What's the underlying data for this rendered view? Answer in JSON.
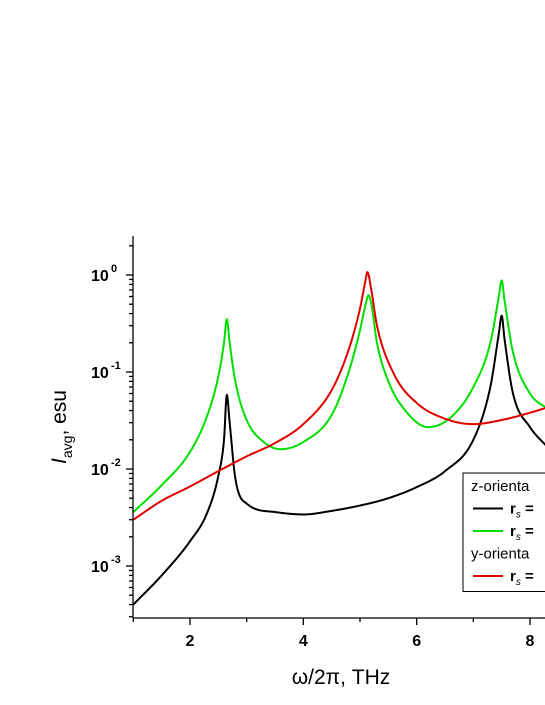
{
  "chart_data": {
    "type": "line",
    "xlabel": "ω/2π, THz",
    "ylabel": {
      "symbol": "I",
      "subscript": "avg",
      "unit": ", esu"
    },
    "xlim": [
      1,
      8.3
    ],
    "ylim": [
      0.0003,
      2.5
    ],
    "yscale": "log",
    "x_ticks": [
      2,
      4,
      6,
      8
    ],
    "y_ticks": [
      {
        "value": 0.001,
        "base": "10",
        "exp": "-3"
      },
      {
        "value": 0.01,
        "base": "10",
        "exp": "-2"
      },
      {
        "value": 0.1,
        "base": "10",
        "exp": "-1"
      },
      {
        "value": 1,
        "base": "10",
        "exp": "0"
      }
    ],
    "grid": false,
    "legend": {
      "placement": "bottom-right",
      "items": [
        {
          "kind": "header",
          "text": "z-orienta"
        },
        {
          "kind": "line",
          "series": 0,
          "label": "r",
          "sub": "s",
          "suffix": " ="
        },
        {
          "kind": "line",
          "series": 1,
          "label": "r",
          "sub": "s",
          "suffix": " ="
        },
        {
          "kind": "header",
          "text": "y-orienta"
        },
        {
          "kind": "line",
          "series": 2,
          "label": "r",
          "sub": "s",
          "suffix": " ="
        }
      ]
    },
    "series": [
      {
        "color": "#000000",
        "x": [
          1.0,
          1.5,
          2.0,
          2.3,
          2.5,
          2.6,
          2.65,
          2.7,
          2.8,
          3.0,
          3.5,
          4.0,
          4.5,
          5.0,
          5.5,
          6.0,
          6.5,
          7.0,
          7.3,
          7.45,
          7.5,
          7.55,
          7.7,
          8.0,
          8.3
        ],
        "y": [
          0.0004,
          0.0008,
          0.0018,
          0.0035,
          0.0085,
          0.02,
          0.058,
          0.03,
          0.008,
          0.0044,
          0.0036,
          0.0034,
          0.0037,
          0.0042,
          0.005,
          0.0065,
          0.0095,
          0.02,
          0.07,
          0.25,
          0.38,
          0.22,
          0.06,
          0.027,
          0.017
        ]
      },
      {
        "color": "#00e000",
        "x": [
          1.0,
          1.5,
          2.0,
          2.3,
          2.5,
          2.6,
          2.65,
          2.7,
          2.8,
          3.0,
          3.3,
          3.6,
          4.0,
          4.5,
          4.8,
          5.0,
          5.1,
          5.15,
          5.2,
          5.3,
          5.5,
          5.8,
          6.2,
          6.6,
          7.0,
          7.3,
          7.45,
          7.5,
          7.55,
          7.7,
          8.0,
          8.3
        ],
        "y": [
          0.0036,
          0.0068,
          0.015,
          0.035,
          0.09,
          0.2,
          0.35,
          0.2,
          0.08,
          0.032,
          0.019,
          0.016,
          0.019,
          0.036,
          0.1,
          0.27,
          0.5,
          0.62,
          0.5,
          0.2,
          0.08,
          0.04,
          0.027,
          0.034,
          0.07,
          0.2,
          0.6,
          0.88,
          0.55,
          0.16,
          0.06,
          0.042
        ]
      },
      {
        "color": "#e00000",
        "x": [
          1.0,
          1.5,
          2.0,
          2.5,
          3.0,
          3.5,
          4.0,
          4.5,
          4.8,
          5.0,
          5.1,
          5.13,
          5.2,
          5.3,
          5.6,
          6.0,
          6.5,
          7.0,
          7.5,
          8.0,
          8.3
        ],
        "y": [
          0.003,
          0.0047,
          0.0066,
          0.0095,
          0.0135,
          0.0185,
          0.029,
          0.065,
          0.17,
          0.45,
          0.9,
          1.07,
          0.7,
          0.3,
          0.095,
          0.048,
          0.033,
          0.029,
          0.032,
          0.038,
          0.043
        ]
      }
    ]
  }
}
